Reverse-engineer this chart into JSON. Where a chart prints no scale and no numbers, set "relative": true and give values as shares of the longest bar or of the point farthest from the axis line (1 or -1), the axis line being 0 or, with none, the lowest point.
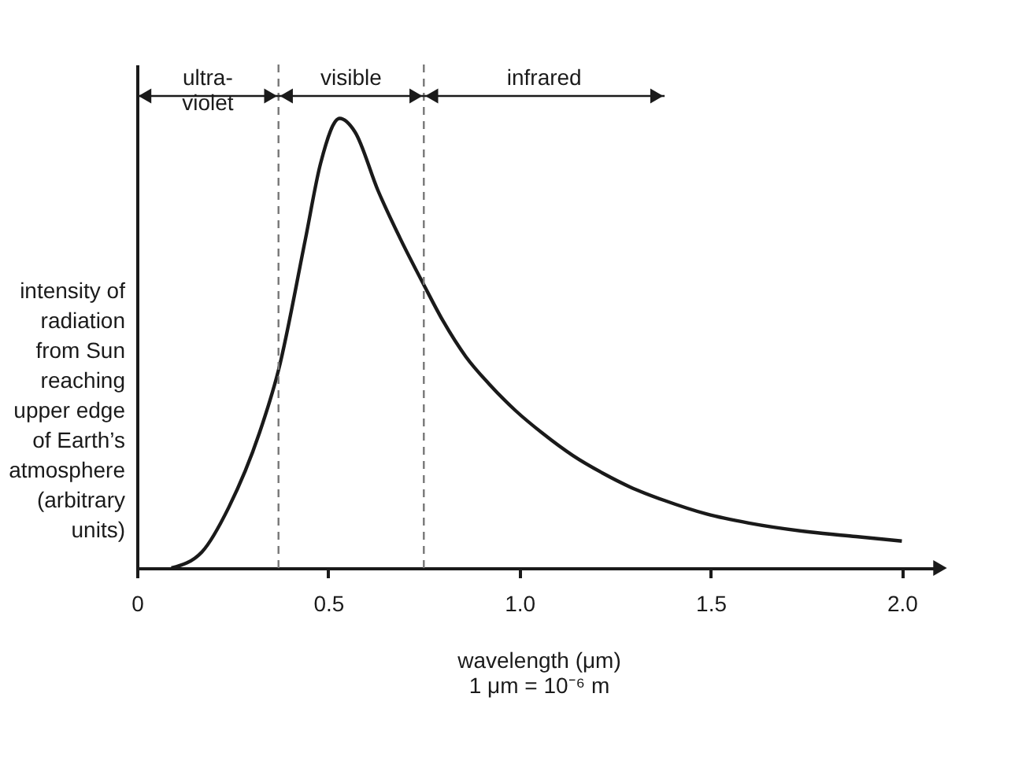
{
  "chart_data": {
    "type": "line",
    "relative": true,
    "xlabel": "wavelength (μm)\n1 μm = 10⁻⁶ m",
    "ylabel": "intensity of\nradiation\nfrom Sun\nreaching\nupper edge\nof Earth’s\natmosphere\n\n(arbitrary\nunits)",
    "x": [
      0.09,
      0.17,
      0.24,
      0.32,
      0.37,
      0.44,
      0.48,
      0.53,
      0.57,
      0.63,
      0.69,
      0.75,
      0.8,
      0.86,
      0.92,
      0.99,
      1.06,
      1.14,
      1.22,
      1.29,
      1.38,
      1.49,
      1.6,
      1.76,
      1.88,
      2.0
    ],
    "series": [
      {
        "color": "#1a1a1a",
        "values": [
          0,
          0.036,
          0.135,
          0.3,
          0.44,
          0.73,
          0.9,
          1,
          0.97,
          0.84,
          0.73,
          0.63,
          0.55,
          0.47,
          0.41,
          0.35,
          0.3,
          0.25,
          0.21,
          0.18,
          0.15,
          0.12,
          0.1,
          0.08,
          0.07,
          0.06
        ]
      }
    ],
    "xlim": [
      0,
      2.1
    ],
    "xticks": [
      {
        "value": 0,
        "label": "0"
      },
      0.5,
      {
        "value": 1,
        "label": "1.0"
      },
      1.5,
      {
        "value": 2,
        "label": "2.0"
      }
    ],
    "ref_lines": [
      {
        "axis": "x",
        "value": 0.37,
        "line_style": "dashed",
        "color": "#777777"
      },
      {
        "axis": "x",
        "value": 0.75,
        "line_style": "dashed",
        "color": "#777777"
      }
    ],
    "annotations": [
      "ultra-\nviolet",
      "visible",
      "infrared"
    ],
    "grid": false,
    "marker": "none",
    "line_style": "solid"
  }
}
